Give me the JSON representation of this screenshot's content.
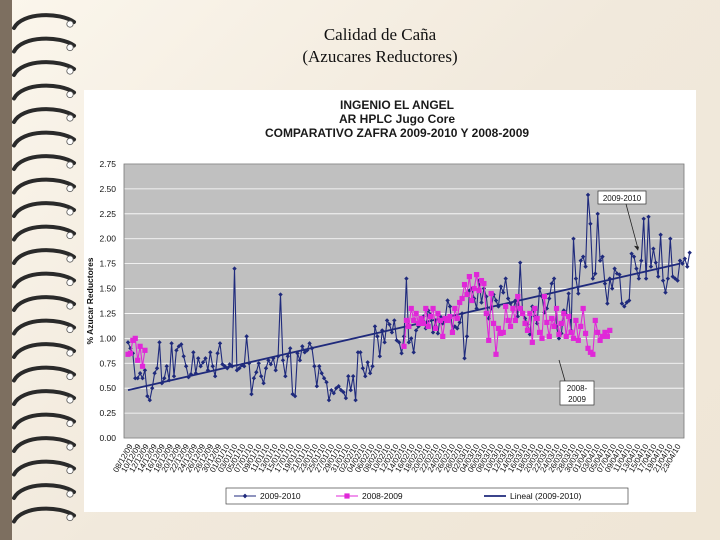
{
  "slide": {
    "title_line1": "Calidad de Caña",
    "title_line2": "(Azucares Reductores)",
    "background": "#f5efe3",
    "binding_color": "#2a2a2a"
  },
  "chart_data": {
    "type": "line",
    "title_lines": [
      "INGENIO EL ANGEL",
      "AR HPLC Jugo Core",
      "COMPARATIVO ZAFRA 2009-2010 Y 2008-2009"
    ],
    "ylabel": "% Azucar Reductores",
    "xlabel": "",
    "ylim": [
      0,
      2.75
    ],
    "yticks": [
      "0.00",
      "0.25",
      "0.50",
      "0.75",
      "1.00",
      "1.25",
      "1.50",
      "1.75",
      "2.00",
      "2.25",
      "2.50",
      "2.75"
    ],
    "xticks": [
      "08/12/09",
      "10/12/09",
      "12/12/09",
      "14/12/09",
      "16/12/09",
      "18/12/09",
      "20/12/09",
      "22/12/09",
      "24/12/09",
      "26/12/09",
      "28/12/09",
      "30/12/09",
      "01/01/10",
      "03/01/10",
      "05/01/10",
      "07/01/10",
      "09/01/10",
      "11/01/10",
      "13/01/10",
      "15/01/10",
      "17/01/10",
      "19/01/10",
      "21/01/10",
      "23/01/10",
      "25/01/10",
      "27/01/10",
      "29/01/10",
      "31/01/10",
      "02/02/10",
      "04/02/10",
      "06/02/10",
      "08/02/10",
      "10/02/10",
      "12/02/10",
      "14/02/10",
      "16/02/10",
      "18/02/10",
      "20/02/10",
      "22/02/10",
      "24/02/10",
      "26/02/10",
      "28/02/10",
      "02/03/10",
      "04/03/10",
      "06/03/10",
      "08/03/10",
      "10/03/10",
      "12/03/10",
      "14/03/10",
      "16/03/10",
      "18/03/10",
      "20/03/10",
      "22/03/10",
      "24/03/10",
      "26/03/10",
      "28/03/10",
      "30/03/10",
      "01/04/10",
      "03/04/10",
      "05/04/10",
      "07/04/10",
      "09/04/10",
      "11/04/10",
      "13/04/10",
      "15/04/10",
      "17/04/10",
      "19/04/10",
      "21/04/10",
      "23/04/10"
    ],
    "grid": true,
    "legend_position": "bottom",
    "plot_background": "#c0c0c0",
    "annotations": [
      {
        "text": "2009-2010",
        "x_index": 196,
        "y": 1.92
      },
      {
        "text": "2008-2009",
        "x_index": 173,
        "y": 0.75
      }
    ],
    "series": [
      {
        "name": "2009-2010",
        "color": "#1f2a7c",
        "marker": "diamond",
        "x_start": 0,
        "values": [
          0.96,
          0.9,
          0.85,
          0.6,
          0.6,
          0.65,
          0.6,
          0.68,
          0.42,
          0.38,
          0.5,
          0.65,
          0.7,
          0.96,
          0.55,
          0.6,
          0.72,
          0.58,
          0.95,
          0.62,
          0.88,
          0.92,
          0.94,
          0.82,
          0.72,
          0.61,
          0.64,
          0.86,
          0.65,
          0.8,
          0.72,
          0.76,
          0.8,
          0.68,
          0.86,
          0.72,
          0.62,
          0.85,
          0.95,
          0.74,
          0.72,
          0.7,
          0.74,
          0.72,
          1.7,
          0.68,
          0.7,
          0.73,
          0.72,
          1.02,
          0.75,
          0.44,
          0.6,
          0.66,
          0.75,
          0.62,
          0.55,
          0.7,
          0.78,
          0.74,
          0.8,
          0.68,
          0.82,
          1.44,
          0.78,
          0.62,
          0.82,
          0.9,
          0.44,
          0.42,
          0.85,
          0.78,
          0.92,
          0.86,
          0.88,
          0.95,
          0.9,
          0.72,
          0.52,
          0.72,
          0.65,
          0.6,
          0.56,
          0.38,
          0.48,
          0.45,
          0.5,
          0.52,
          0.48,
          0.46,
          0.4,
          0.62,
          0.48,
          0.62,
          0.38,
          0.86,
          0.86,
          0.7,
          0.62,
          0.76,
          0.65,
          0.72,
          1.12,
          1.02,
          0.82,
          1.08,
          0.96,
          1.18,
          1.14,
          1.06,
          1.18,
          0.98,
          0.96,
          0.85,
          1.02,
          1.6,
          0.96,
          1.0,
          0.86,
          1.08,
          1.12,
          1.2,
          1.22,
          1.1,
          1.28,
          1.24,
          1.06,
          1.18,
          1.05,
          1.22,
          1.15,
          1.2,
          1.38,
          1.32,
          1.08,
          1.12,
          1.1,
          1.16,
          1.25,
          0.8,
          1.02,
          1.48,
          1.5,
          1.4,
          1.3,
          1.58,
          1.36,
          1.5,
          1.42,
          1.2,
          1.3,
          1.44,
          1.38,
          1.32,
          1.52,
          1.46,
          1.6,
          1.4,
          1.35,
          1.28,
          1.38,
          1.22,
          1.76,
          1.26,
          1.2,
          1.14,
          1.04,
          1.32,
          1.22,
          1.15,
          1.5,
          1.42,
          1.26,
          1.3,
          1.4,
          1.55,
          1.6,
          1.12,
          1.0,
          1.05,
          1.28,
          1.24,
          1.45,
          1.08,
          2.0,
          1.6,
          1.45,
          1.78,
          1.82,
          1.72,
          2.44,
          2.15,
          1.6,
          1.65,
          2.25,
          1.78,
          1.82,
          1.55,
          1.35,
          1.6,
          1.5,
          1.7,
          1.65,
          1.64,
          1.35,
          1.32,
          1.36,
          1.38,
          1.85,
          1.82,
          1.7,
          1.6,
          1.78,
          2.2,
          1.6,
          2.22,
          1.72,
          1.9,
          1.76,
          1.62,
          2.04,
          1.58,
          1.46,
          1.6,
          2.0,
          1.62,
          1.6,
          1.58,
          1.78,
          1.75,
          1.8,
          1.72,
          1.86
        ]
      },
      {
        "name": "2008-2009",
        "color": "#e028d8",
        "marker": "square",
        "x_start": 0,
        "values": [
          0.84,
          0.85,
          0.98,
          1.0,
          0.78,
          0.92,
          0.72,
          0.88
        ],
        "x2_start": 114,
        "values2": [
          0.92,
          1.18,
          1.12,
          1.3,
          1.18,
          1.25,
          1.15,
          1.2,
          1.15,
          1.3,
          1.12,
          1.22,
          1.3,
          1.1,
          1.25,
          1.18,
          1.02,
          1.2,
          1.18,
          1.22,
          1.06,
          1.3,
          1.2,
          1.36,
          1.4,
          1.54,
          1.44,
          1.62,
          1.38,
          1.5,
          1.64,
          1.48,
          1.58,
          1.55,
          1.25,
          0.98,
          1.45,
          1.15,
          0.84,
          1.1,
          1.05,
          1.06,
          1.32,
          1.18,
          1.12,
          1.3,
          1.18,
          1.42,
          1.3,
          1.25,
          1.15,
          1.08,
          1.25,
          0.96,
          1.3,
          1.2,
          1.06,
          1.0,
          1.42,
          1.16,
          1.02,
          1.2,
          1.12,
          1.3,
          1.04,
          1.15,
          1.25,
          1.02,
          1.22,
          1.06,
          1.0,
          1.18,
          0.98,
          1.12,
          1.3,
          1.05,
          0.9,
          0.86,
          0.84,
          1.18,
          1.06,
          0.98,
          1.02,
          1.06,
          1.02,
          1.08
        ]
      },
      {
        "name": "Lineal (2009-2010)",
        "color": "#1f2a7c",
        "type": "trendline",
        "x": [
          0,
          228
        ],
        "values": [
          0.48,
          1.75
        ]
      }
    ]
  }
}
